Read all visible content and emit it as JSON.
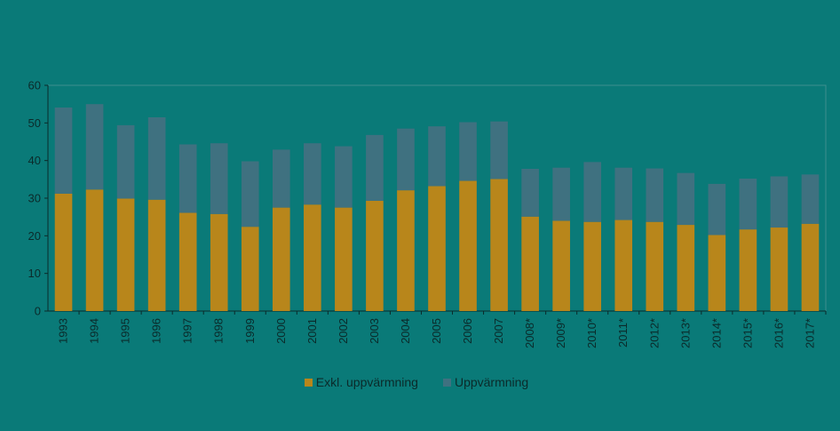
{
  "chart_data": {
    "type": "bar",
    "stacked": true,
    "unit_label": "",
    "categories": [
      "1993",
      "1994",
      "1995",
      "1996",
      "1997",
      "1998",
      "1999",
      "2000",
      "2001",
      "2002",
      "2003",
      "2004",
      "2005",
      "2006",
      "2007",
      "2008*",
      "2009*",
      "2010*",
      "2011*",
      "2012*",
      "2013*",
      "2014*",
      "2015*",
      "2016*",
      "2017*"
    ],
    "series": [
      {
        "name": "Exkl. uppvärmning",
        "color": "#b8861b",
        "values": [
          31.2,
          32.3,
          29.9,
          29.6,
          26.1,
          25.8,
          22.4,
          27.5,
          28.3,
          27.5,
          29.3,
          32.1,
          33.2,
          34.6,
          35.1,
          25.1,
          24.0,
          23.7,
          24.2,
          23.7,
          22.9,
          20.2,
          21.7,
          22.2,
          23.2
        ]
      },
      {
        "name": "Uppvärmning",
        "color": "#3f7180",
        "values": [
          22.9,
          22.7,
          19.5,
          21.9,
          18.2,
          18.8,
          17.4,
          15.4,
          16.3,
          16.3,
          17.5,
          16.4,
          15.9,
          15.6,
          15.3,
          12.7,
          14.1,
          15.9,
          13.9,
          14.2,
          13.8,
          13.6,
          13.5,
          13.6,
          13.1
        ]
      }
    ],
    "ylim": [
      0,
      60
    ],
    "yticks": [
      0,
      10,
      20,
      30,
      40,
      50,
      60
    ],
    "grid": false,
    "legend_position": "bottom"
  }
}
